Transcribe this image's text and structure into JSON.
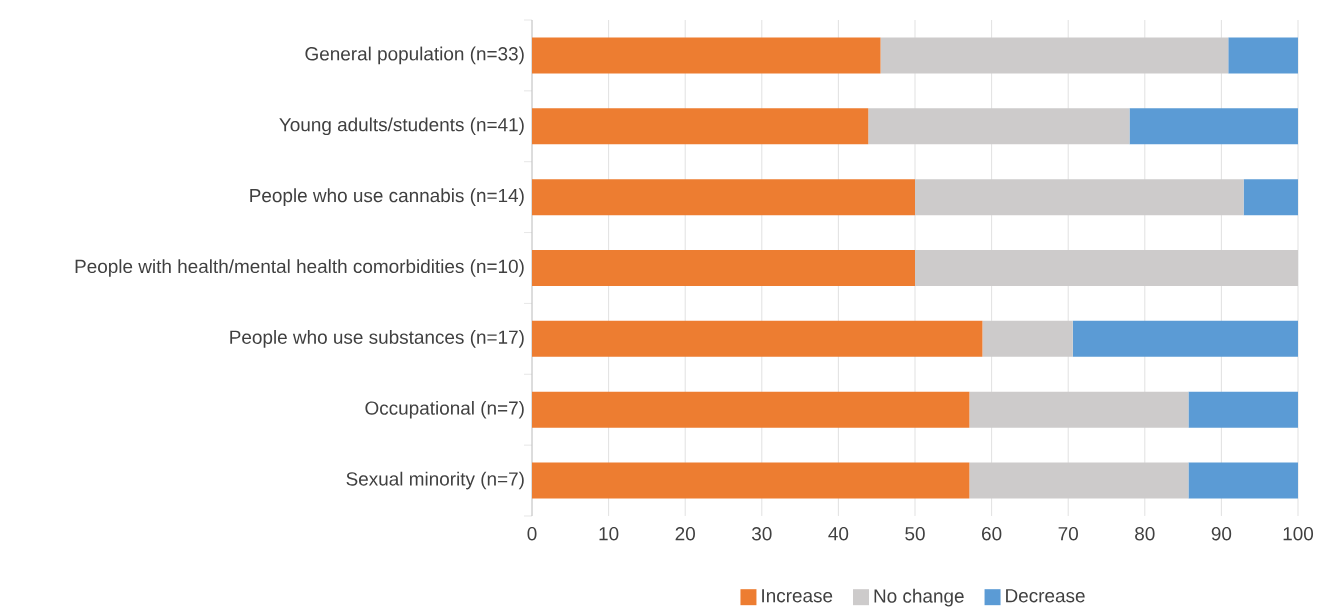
{
  "chart_data": {
    "type": "bar",
    "orientation": "horizontal",
    "stacked": true,
    "categories": [
      "General population (n=33)",
      "Young adults/students (n=41)",
      "People who use cannabis (n=14)",
      "People with health/mental health comorbidities (n=10)",
      "People who use substances (n=17)",
      "Occupational (n=7)",
      "Sexual minority (n=7)"
    ],
    "series": [
      {
        "name": "Increase",
        "color": "#ed7d31",
        "values": [
          45.5,
          43.9,
          50.0,
          50.0,
          58.8,
          57.1,
          57.1
        ]
      },
      {
        "name": "No change",
        "color": "#cdcbcb",
        "values": [
          45.4,
          34.1,
          42.9,
          50.0,
          11.8,
          28.6,
          28.6
        ]
      },
      {
        "name": "Decrease",
        "color": "#5b9bd5",
        "values": [
          9.1,
          22.0,
          7.1,
          0.0,
          29.4,
          14.3,
          14.3
        ]
      }
    ],
    "xlim": [
      0,
      100
    ],
    "xticks": [
      0,
      10,
      20,
      30,
      40,
      50,
      60,
      70,
      80,
      90,
      100
    ],
    "grid": "x",
    "legend": "bottom"
  }
}
